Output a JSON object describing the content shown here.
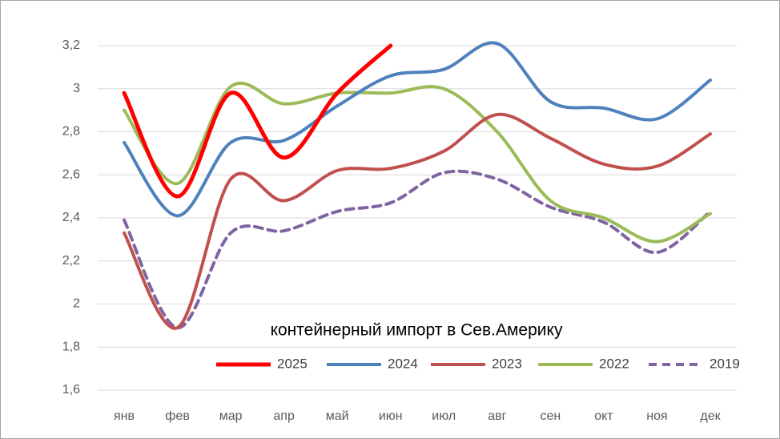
{
  "chart_data": {
    "type": "line",
    "title": "контейнерный импорт в Сев.Америку",
    "categories": [
      "янв",
      "фев",
      "мар",
      "апр",
      "май",
      "июн",
      "июл",
      "авг",
      "сен",
      "окт",
      "ноя",
      "дек"
    ],
    "series": [
      {
        "name": "2025",
        "color": "#ff0000",
        "style": "solid",
        "values": [
          2.98,
          2.5,
          2.98,
          2.68,
          2.98,
          3.2,
          null,
          null,
          null,
          null,
          null,
          null
        ]
      },
      {
        "name": "2024",
        "color": "#4f81bd",
        "style": "solid",
        "values": [
          2.75,
          2.41,
          2.75,
          2.76,
          2.92,
          3.06,
          3.09,
          3.21,
          2.94,
          2.91,
          2.86,
          3.04
        ]
      },
      {
        "name": "2023",
        "color": "#c0504d",
        "style": "solid",
        "values": [
          2.33,
          1.89,
          2.58,
          2.48,
          2.62,
          2.63,
          2.71,
          2.88,
          2.77,
          2.65,
          2.64,
          2.79
        ]
      },
      {
        "name": "2022",
        "color": "#9bbb59",
        "style": "solid",
        "values": [
          2.9,
          2.56,
          3.01,
          2.93,
          2.98,
          2.98,
          3.0,
          2.8,
          2.48,
          2.4,
          2.29,
          2.42
        ]
      },
      {
        "name": "2019",
        "color": "#8064a2",
        "style": "dashed",
        "values": [
          2.39,
          1.89,
          2.33,
          2.34,
          2.43,
          2.47,
          2.61,
          2.58,
          2.45,
          2.38,
          2.24,
          2.43
        ]
      }
    ],
    "ylim": [
      1.6,
      3.2
    ],
    "yticks": [
      {
        "value": 1.6,
        "label": "1,6"
      },
      {
        "value": 1.8,
        "label": "1,8"
      },
      2,
      {
        "value": 2.2,
        "label": "2,2"
      },
      {
        "value": 2.4,
        "label": "2,4"
      },
      {
        "value": 2.6,
        "label": "2,6"
      },
      {
        "value": 2.8,
        "label": "2,8"
      },
      3,
      {
        "value": 3.2,
        "label": "3,2"
      }
    ],
    "grid": true
  }
}
